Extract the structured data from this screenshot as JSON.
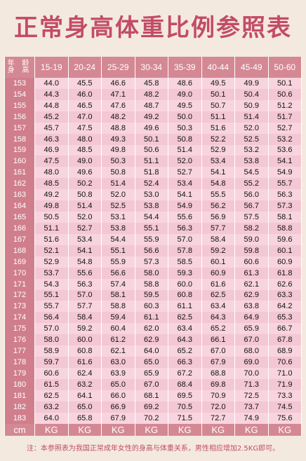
{
  "title": "正常身高体重比例参照表",
  "table": {
    "corner_top": "年 龄",
    "corner_bottom": "身 高",
    "age_groups": [
      "15-19",
      "20-24",
      "25-29",
      "30-34",
      "35-39",
      "40-44",
      "45-49",
      "50-60"
    ],
    "height_unit": "cm",
    "weight_unit": "KG",
    "rows": [
      {
        "h": "153",
        "w": [
          "44.0",
          "45.5",
          "46.6",
          "45.8",
          "48.6",
          "49.5",
          "49.9",
          "50.1"
        ]
      },
      {
        "h": "154",
        "w": [
          "44.3",
          "46.0",
          "47.1",
          "48.2",
          "49.0",
          "50.1",
          "50.4",
          "50.6"
        ]
      },
      {
        "h": "155",
        "w": [
          "44.8",
          "46.5",
          "47.6",
          "48.7",
          "49.5",
          "50.7",
          "50.9",
          "51.2"
        ]
      },
      {
        "h": "156",
        "w": [
          "45.2",
          "47.0",
          "48.2",
          "49.2",
          "50.0",
          "51.1",
          "51.4",
          "51.7"
        ]
      },
      {
        "h": "157",
        "w": [
          "45.7",
          "47.5",
          "48.8",
          "49.6",
          "50.3",
          "51.6",
          "52.0",
          "52.7"
        ]
      },
      {
        "h": "158",
        "w": [
          "46.3",
          "48.0",
          "49.3",
          "50.1",
          "50.8",
          "52.2",
          "52.5",
          "53.2"
        ]
      },
      {
        "h": "159",
        "w": [
          "46.9",
          "48.5",
          "49.8",
          "50.6",
          "51.4",
          "52.9",
          "53.2",
          "53.6"
        ]
      },
      {
        "h": "160",
        "w": [
          "47.5",
          "49.0",
          "50.3",
          "51.1",
          "52.0",
          "53.4",
          "53.8",
          "54.1"
        ]
      },
      {
        "h": "161",
        "w": [
          "48.0",
          "49.6",
          "50.8",
          "51.8",
          "52.7",
          "54.1",
          "54.5",
          "54.9"
        ]
      },
      {
        "h": "162",
        "w": [
          "48.5",
          "50.2",
          "51.4",
          "52.4",
          "53.4",
          "54.8",
          "55.2",
          "55.7"
        ]
      },
      {
        "h": "163",
        "w": [
          "49.2",
          "50.8",
          "52.0",
          "53.0",
          "54.1",
          "55.5",
          "56.0",
          "56.3"
        ]
      },
      {
        "h": "164",
        "w": [
          "49.8",
          "51.4",
          "52.5",
          "53.8",
          "54.9",
          "56.2",
          "56.7",
          "57.3"
        ]
      },
      {
        "h": "165",
        "w": [
          "50.5",
          "52.0",
          "53.1",
          "54.4",
          "55.6",
          "56.9",
          "57.5",
          "58.1"
        ]
      },
      {
        "h": "166",
        "w": [
          "51.1",
          "52.7",
          "53.8",
          "55.1",
          "56.3",
          "57.7",
          "58.2",
          "58.8"
        ]
      },
      {
        "h": "167",
        "w": [
          "51.6",
          "53.4",
          "54.4",
          "55.9",
          "57.0",
          "58.4",
          "59.0",
          "59.6"
        ]
      },
      {
        "h": "168",
        "w": [
          "52.1",
          "54.1",
          "55.1",
          "56.6",
          "57.8",
          "59.2",
          "59.8",
          "60.1"
        ]
      },
      {
        "h": "169",
        "w": [
          "52.9",
          "54.8",
          "55.9",
          "57.3",
          "58.5",
          "60.1",
          "60.6",
          "60.9"
        ]
      },
      {
        "h": "170",
        "w": [
          "53.7",
          "55.6",
          "56.6",
          "58.0",
          "59.3",
          "60.9",
          "61.3",
          "61.8"
        ]
      },
      {
        "h": "171",
        "w": [
          "54.3",
          "56.3",
          "57.4",
          "58.8",
          "60.0",
          "61.6",
          "62.1",
          "62.6"
        ]
      },
      {
        "h": "172",
        "w": [
          "55.1",
          "57.0",
          "58.1",
          "59.5",
          "60.8",
          "62.5",
          "62.9",
          "63.3"
        ]
      },
      {
        "h": "173",
        "w": [
          "55.7",
          "57.7",
          "58.8",
          "60.3",
          "61.1",
          "63.4",
          "63.8",
          "64.2"
        ]
      },
      {
        "h": "174",
        "w": [
          "56.4",
          "58.4",
          "59.4",
          "61.1",
          "62.5",
          "64.3",
          "64.9",
          "65.3"
        ]
      },
      {
        "h": "175",
        "w": [
          "57.0",
          "59.2",
          "60.4",
          "62.0",
          "63.4",
          "65.2",
          "65.9",
          "66.7"
        ]
      },
      {
        "h": "176",
        "w": [
          "58.0",
          "60.0",
          "61.2",
          "62.9",
          "64.3",
          "66.1",
          "67.0",
          "67.8"
        ]
      },
      {
        "h": "177",
        "w": [
          "58.9",
          "60.8",
          "62.1",
          "64.0",
          "65.2",
          "67.0",
          "68.0",
          "68.9"
        ]
      },
      {
        "h": "178",
        "w": [
          "59.7",
          "61.6",
          "63.0",
          "65.0",
          "66.3",
          "67.9",
          "69.0",
          "70.6"
        ]
      },
      {
        "h": "179",
        "w": [
          "60.6",
          "62.4",
          "63.9",
          "65.9",
          "67.2",
          "68.8",
          "70.0",
          "71.0"
        ]
      },
      {
        "h": "180",
        "w": [
          "61.5",
          "63.2",
          "65.0",
          "67.0",
          "68.4",
          "69.8",
          "71.3",
          "71.9"
        ]
      },
      {
        "h": "181",
        "w": [
          "62.5",
          "64.1",
          "66.0",
          "68.1",
          "69.5",
          "70.9",
          "72.5",
          "73.3"
        ]
      },
      {
        "h": "182",
        "w": [
          "63.2",
          "65.0",
          "66.9",
          "69.2",
          "70.5",
          "72.0",
          "73.7",
          "74.5"
        ]
      },
      {
        "h": "183",
        "w": [
          "64.0",
          "65.8",
          "67.9",
          "70.2",
          "71.5",
          "72.7",
          "74.9",
          "75.6"
        ]
      }
    ]
  },
  "note": "注：本参照表为我国正常成年女性的身高与体重关系，男性相应增加2.5KG即可。"
}
